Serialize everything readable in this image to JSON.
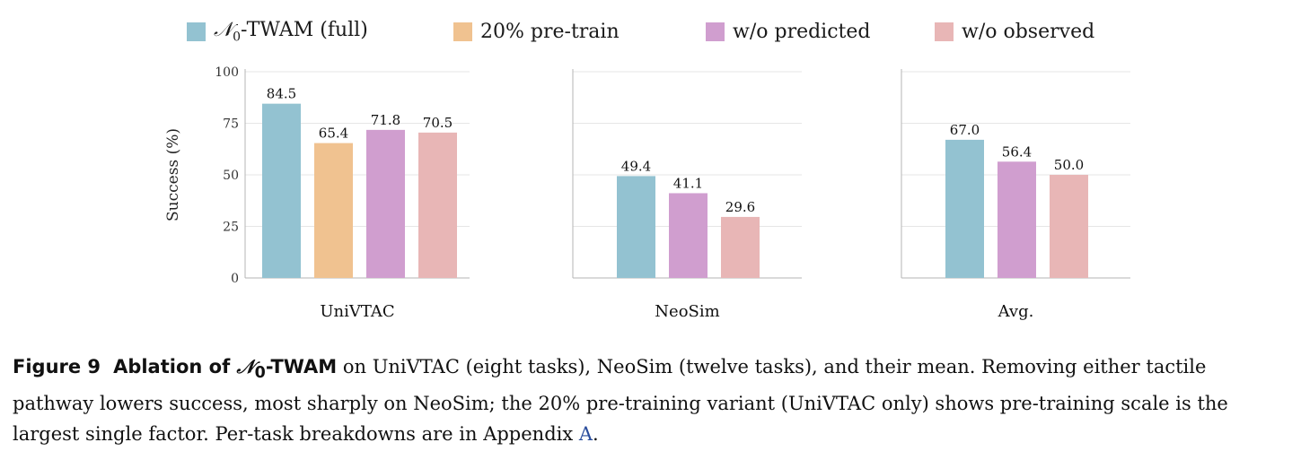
{
  "chart_data": {
    "type": "bar",
    "ylabel": "Success (%)",
    "ylim": [
      0,
      100
    ],
    "yticks": [
      0,
      25,
      50,
      75,
      100
    ],
    "grid": true,
    "legend_placement": "top",
    "series_styles": [
      {
        "name": "𝒩0-TWAM (full)",
        "color": "#93c2d1"
      },
      {
        "name": "20% pre-train",
        "color": "#f0c290"
      },
      {
        "name": "w/o predicted",
        "color": "#d09ecf"
      },
      {
        "name": "w/o observed",
        "color": "#e8b6b6"
      }
    ],
    "panels": [
      {
        "title": "UniVTAC",
        "bars": [
          {
            "series": "𝒩0-TWAM (full)",
            "value": 84.5,
            "label": "84.5"
          },
          {
            "series": "20% pre-train",
            "value": 65.4,
            "label": "65.4"
          },
          {
            "series": "w/o predicted",
            "value": 71.8,
            "label": "71.8"
          },
          {
            "series": "w/o observed",
            "value": 70.5,
            "label": "70.5"
          }
        ]
      },
      {
        "title": "NeoSim",
        "bars": [
          {
            "series": "𝒩0-TWAM (full)",
            "value": 49.4,
            "label": "49.4"
          },
          {
            "series": "w/o predicted",
            "value": 41.1,
            "label": "41.1"
          },
          {
            "series": "w/o observed",
            "value": 29.6,
            "label": "29.6"
          }
        ]
      },
      {
        "title": "Avg.",
        "bars": [
          {
            "series": "𝒩0-TWAM (full)",
            "value": 67.0,
            "label": "67.0"
          },
          {
            "series": "w/o predicted",
            "value": 56.4,
            "label": "56.4"
          },
          {
            "series": "w/o observed",
            "value": 50.0,
            "label": "50.0"
          }
        ]
      }
    ]
  },
  "legend": {
    "items": [
      {
        "label_math": "𝒩",
        "label_sub": "0",
        "label_rest": "-TWAM (full)"
      },
      {
        "label": "20% pre-train"
      },
      {
        "label": "w/o predicted"
      },
      {
        "label": "w/o observed"
      }
    ]
  },
  "caption": {
    "label": "Figure 9",
    "title_prefix": "Ablation of ",
    "title_math": "𝒩",
    "title_sub": "0",
    "title_suffix": "-TWAM",
    "text": " on UniVTAC (eight tasks), NeoSim (twelve tasks), and their mean. Removing either tactile pathway lowers success, most sharply on NeoSim; the 20% pre-training variant (UniVTAC only) shows pre-training scale is the largest single factor. Per-task breakdowns are in Appendix ",
    "link": "A",
    "end": "."
  }
}
